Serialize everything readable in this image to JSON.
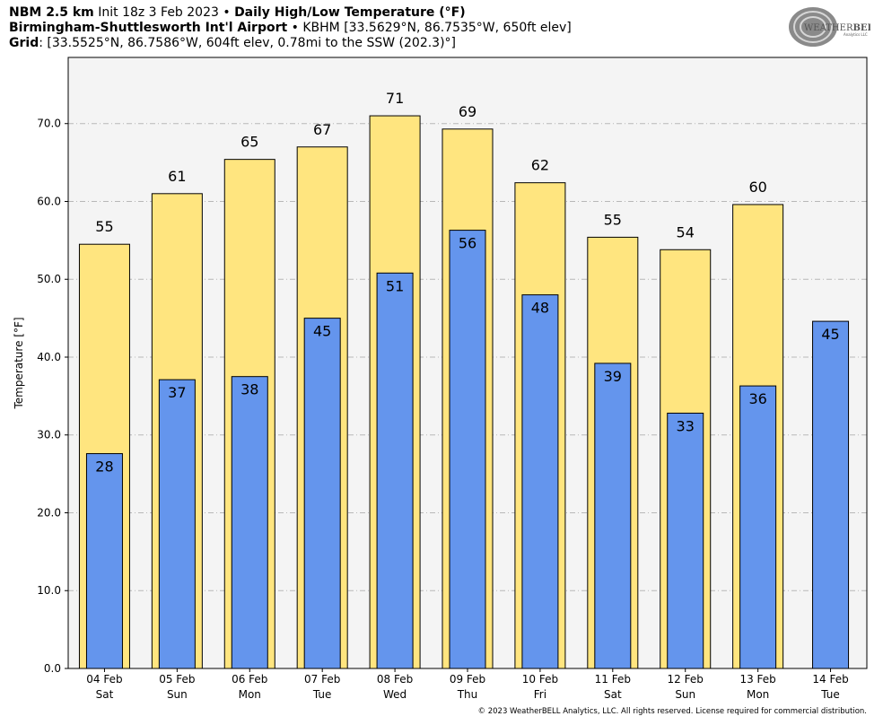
{
  "header": {
    "line1_bold_a": "NBM 2.5 km",
    "line1_text": " Init 18z 3 Feb 2023 • ",
    "line1_bold_b": "Daily High/Low Temperature (°F)",
    "line2_bold": "Birmingham-Shuttlesworth Int'l Airport",
    "line2_text": " • KBHM [33.5629°N, 86.7535°W, 650ft elev]",
    "line3_bold": "Grid",
    "line3_text": ": [33.5525°N, 86.7586°W, 604ft elev, 0.78mi to the SSW (202.3)°]"
  },
  "logo": {
    "text_a": "WEATHER",
    "text_b": "BELL",
    "sub": "Analytics LLC"
  },
  "copyright": "© 2023 WeatherBELL Analytics, LLC. All rights reserved. License required for commercial distribution.",
  "colors": {
    "high": "#ffe57f",
    "low": "#6495ed",
    "plot_bg": "#f4f4f4",
    "grid": "#b8b8b8"
  },
  "chart_data": {
    "type": "bar",
    "ylabel": "Temperature [°F]",
    "ylim": [
      0,
      78.5
    ],
    "yticks": [
      "0.0",
      "10.0",
      "20.0",
      "30.0",
      "40.0",
      "50.0",
      "60.0",
      "70.0"
    ],
    "grid": "horizontal dashed",
    "categories": [
      [
        "04 Feb",
        "Sat"
      ],
      [
        "05 Feb",
        "Sun"
      ],
      [
        "06 Feb",
        "Mon"
      ],
      [
        "07 Feb",
        "Tue"
      ],
      [
        "08 Feb",
        "Wed"
      ],
      [
        "09 Feb",
        "Thu"
      ],
      [
        "10 Feb",
        "Fri"
      ],
      [
        "11 Feb",
        "Sat"
      ],
      [
        "12 Feb",
        "Sun"
      ],
      [
        "13 Feb",
        "Mon"
      ],
      [
        "14 Feb",
        "Tue"
      ]
    ],
    "series": [
      {
        "key": "high",
        "values": [
          54.5,
          61.0,
          65.4,
          67.0,
          71.0,
          69.3,
          62.4,
          55.4,
          53.8,
          59.6,
          null
        ],
        "labels": [
          "55",
          "61",
          "65",
          "67",
          "71",
          "69",
          "62",
          "55",
          "54",
          "60",
          ""
        ]
      },
      {
        "key": "low",
        "values": [
          27.6,
          37.1,
          37.5,
          45.0,
          50.8,
          56.3,
          48.0,
          39.2,
          32.8,
          36.3,
          44.6
        ],
        "labels": [
          "28",
          "37",
          "38",
          "45",
          "51",
          "56",
          "48",
          "39",
          "33",
          "36",
          "45"
        ]
      }
    ]
  }
}
